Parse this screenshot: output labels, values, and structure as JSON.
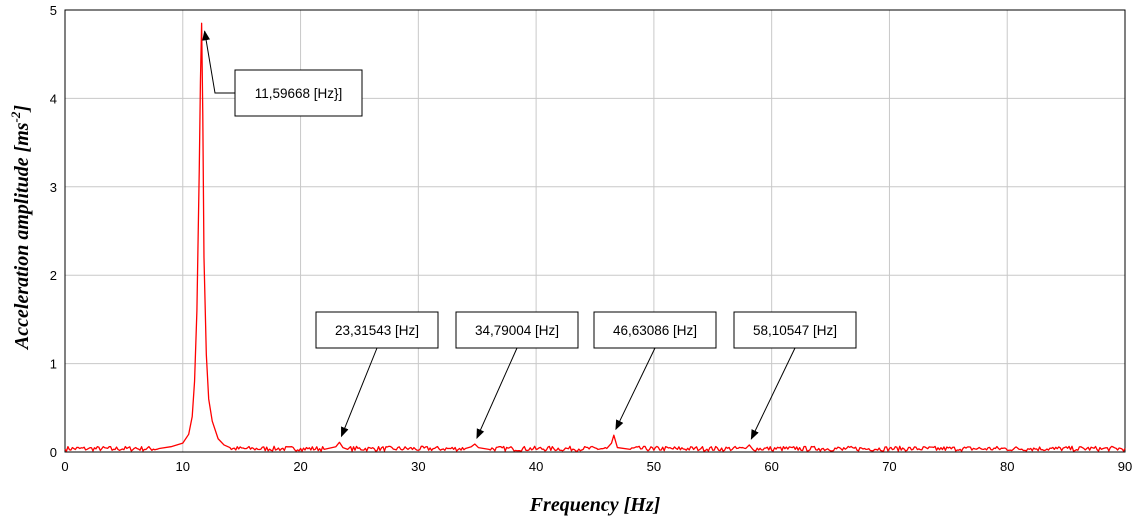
{
  "chart_data": {
    "type": "line",
    "title": "",
    "xlabel": "Frequency [Hz]",
    "ylabel": "Acceleration amplitude [ms",
    "ylabel_sup": "-2",
    "ylabel_end": "]",
    "xlim": [
      0,
      90
    ],
    "ylim": [
      0,
      5
    ],
    "xticks": [
      0,
      10,
      20,
      30,
      40,
      50,
      60,
      70,
      80,
      90
    ],
    "yticks": [
      0,
      1,
      2,
      3,
      4,
      5
    ],
    "grid": true,
    "legend": "none",
    "series": [
      {
        "color": "#ff0000",
        "x": [
          0,
          2,
          4,
          6,
          8,
          9,
          10,
          10.5,
          10.8,
          11.0,
          11.2,
          11.4,
          11.5,
          11.6,
          11.7,
          11.8,
          12.0,
          12.2,
          12.5,
          13.0,
          13.5,
          14,
          16,
          18,
          20,
          22,
          23.0,
          23.3,
          23.6,
          24,
          26,
          28,
          30,
          32,
          34,
          34.5,
          34.8,
          35.1,
          36,
          38,
          40,
          42,
          44,
          46,
          46.4,
          46.6,
          46.9,
          48,
          50,
          52,
          54,
          56,
          57.8,
          58.1,
          58.4,
          60,
          62,
          64,
          66,
          68,
          70,
          72,
          74,
          76,
          78,
          80,
          82,
          84,
          86,
          88,
          90
        ],
        "y": [
          0.03,
          0.04,
          0.02,
          0.05,
          0.04,
          0.06,
          0.1,
          0.2,
          0.4,
          0.8,
          1.6,
          3.2,
          4.2,
          4.85,
          3.8,
          2.2,
          1.1,
          0.6,
          0.35,
          0.15,
          0.08,
          0.05,
          0.04,
          0.03,
          0.04,
          0.03,
          0.06,
          0.11,
          0.05,
          0.03,
          0.04,
          0.03,
          0.02,
          0.03,
          0.04,
          0.06,
          0.09,
          0.05,
          0.03,
          0.04,
          0.03,
          0.02,
          0.03,
          0.04,
          0.1,
          0.19,
          0.05,
          0.03,
          0.02,
          0.03,
          0.04,
          0.02,
          0.04,
          0.08,
          0.03,
          0.02,
          0.03,
          0.04,
          0.02,
          0.03,
          0.04,
          0.03,
          0.02,
          0.03,
          0.03,
          0.02,
          0.04,
          0.03,
          0.02,
          0.03,
          0.04
        ]
      }
    ],
    "annotations": [
      {
        "text": "11,59668 [Hz}]",
        "x": 11.6,
        "y": 4.85
      },
      {
        "text": "23,31543 [Hz]",
        "x": 23.3,
        "y": 0.11
      },
      {
        "text": "34,79004 [Hz]",
        "x": 34.8,
        "y": 0.09
      },
      {
        "text": "46,63086 [Hz]",
        "x": 46.6,
        "y": 0.19
      },
      {
        "text": "58,10547 [Hz]",
        "x": 58.1,
        "y": 0.08
      }
    ]
  }
}
